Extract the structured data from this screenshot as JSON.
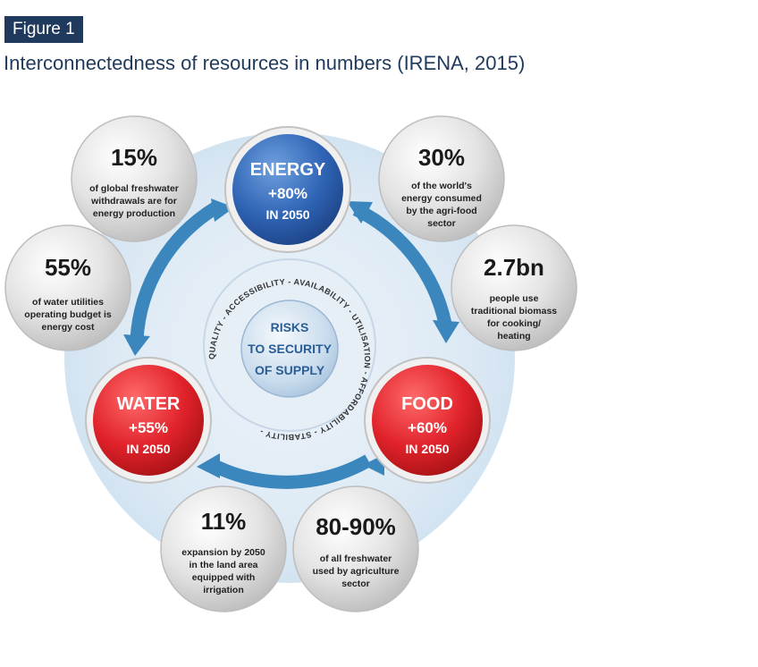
{
  "figure": {
    "tag": "Figure 1",
    "title": "Interconnectedness of resources in numbers (IRENA, 2015)"
  },
  "center": {
    "lines": [
      "RISKS",
      "TO SECURITY",
      "OF SUPPLY"
    ],
    "ring_text": "QUALITY - ACCESSIBILITY - AVAILABILITY - UTILISATION - AFFORDABILITY - STABILITY -"
  },
  "core_nodes": [
    {
      "id": "energy",
      "label": "ENERGY",
      "change": "+80%",
      "year": "IN 2050",
      "color": "#2f64b5"
    },
    {
      "id": "water",
      "label": "WATER",
      "change": "+55%",
      "year": "IN 2050",
      "color": "#e0222a"
    },
    {
      "id": "food",
      "label": "FOOD",
      "change": "+60%",
      "year": "IN 2050",
      "color": "#e0222a"
    }
  ],
  "stat_bubbles": [
    {
      "id": "water-for-energy",
      "value": "15%",
      "lines": [
        "of global freshwater",
        "withdrawals are for",
        "energy production"
      ]
    },
    {
      "id": "energy-agrifood",
      "value": "30%",
      "lines": [
        "of the world's",
        "energy consumed",
        "by the agri-food",
        "sector"
      ]
    },
    {
      "id": "water-utilities",
      "value": "55%",
      "lines": [
        "of water utilities",
        "operating budget is",
        "energy cost"
      ]
    },
    {
      "id": "traditional-biomass",
      "value": "2.7bn",
      "lines": [
        "people use",
        "traditional biomass",
        "for cooking/",
        "heating"
      ]
    },
    {
      "id": "irrigation",
      "value": "11%",
      "lines": [
        "expansion by 2050",
        "in the land area",
        "equipped with",
        "irrigation"
      ]
    },
    {
      "id": "agri-freshwater",
      "value": "80-90%",
      "lines": [
        "of all freshwater",
        "used by agriculture",
        "sector"
      ]
    }
  ],
  "colors": {
    "navy": "#1f3a5c",
    "arrow_blue": "#3a86bd",
    "halo": "#dce9f4",
    "bubble_grey": "#e2e2e2"
  }
}
